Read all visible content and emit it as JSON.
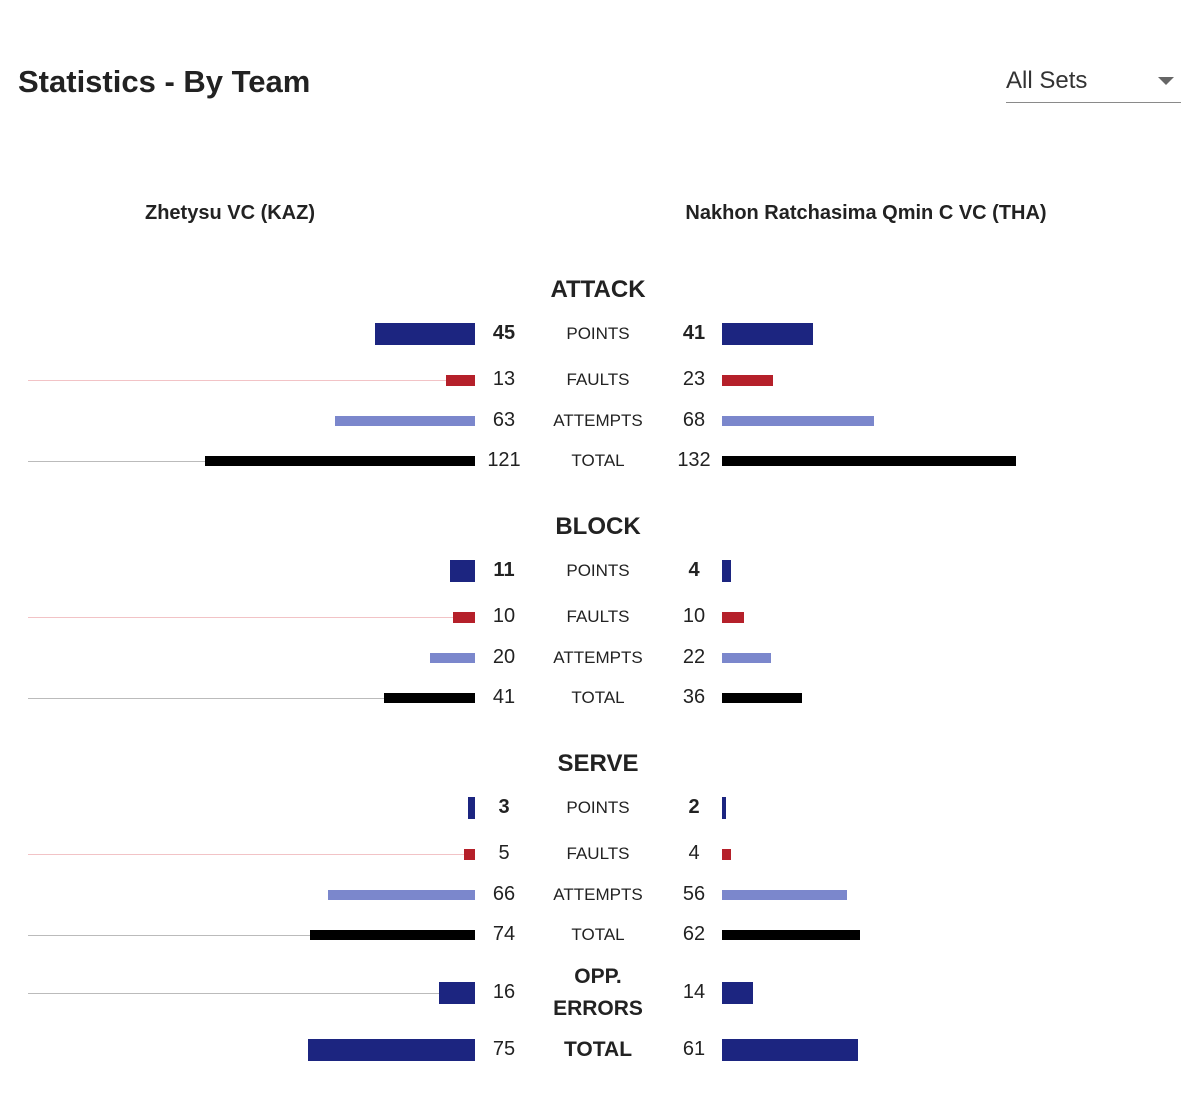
{
  "header": {
    "title": "Statistics - By Team"
  },
  "set_filter": {
    "selected": "All Sets"
  },
  "colors": {
    "points": "#1c2580",
    "faults": "#b5202a",
    "attempts": "#7b87cc",
    "total": "#000000",
    "fault_track": "#f2c3c6",
    "total_track": "#bbbbbb"
  },
  "chart_data": {
    "type": "bar",
    "orientation": "horizontal-diverging",
    "teams": [
      "Zhetysu VC (KAZ)",
      "Nakhon Ratchasima Qmin C VC (THA)"
    ],
    "sections": [
      {
        "name": "ATTACK",
        "rows": [
          {
            "label": "POINTS",
            "type": "points",
            "home": 45,
            "away": 41
          },
          {
            "label": "FAULTS",
            "type": "faults",
            "home": 13,
            "away": 23
          },
          {
            "label": "ATTEMPTS",
            "type": "attempts",
            "home": 63,
            "away": 68
          },
          {
            "label": "TOTAL",
            "type": "total",
            "home": 121,
            "away": 132
          }
        ]
      },
      {
        "name": "BLOCK",
        "rows": [
          {
            "label": "POINTS",
            "type": "points",
            "home": 11,
            "away": 4
          },
          {
            "label": "FAULTS",
            "type": "faults",
            "home": 10,
            "away": 10
          },
          {
            "label": "ATTEMPTS",
            "type": "attempts",
            "home": 20,
            "away": 22
          },
          {
            "label": "TOTAL",
            "type": "total",
            "home": 41,
            "away": 36
          }
        ]
      },
      {
        "name": "SERVE",
        "rows": [
          {
            "label": "POINTS",
            "type": "points",
            "home": 3,
            "away": 2
          },
          {
            "label": "FAULTS",
            "type": "faults",
            "home": 5,
            "away": 4
          },
          {
            "label": "ATTEMPTS",
            "type": "attempts",
            "home": 66,
            "away": 56
          },
          {
            "label": "TOTAL",
            "type": "total",
            "home": 74,
            "away": 62
          }
        ]
      }
    ],
    "extra_rows": [
      {
        "label": "OPP. ERRORS",
        "type": "opp_errors",
        "home": 16,
        "away": 14
      },
      {
        "label": "TOTAL",
        "type": "grand_total",
        "home": 75,
        "away": 61
      }
    ]
  }
}
